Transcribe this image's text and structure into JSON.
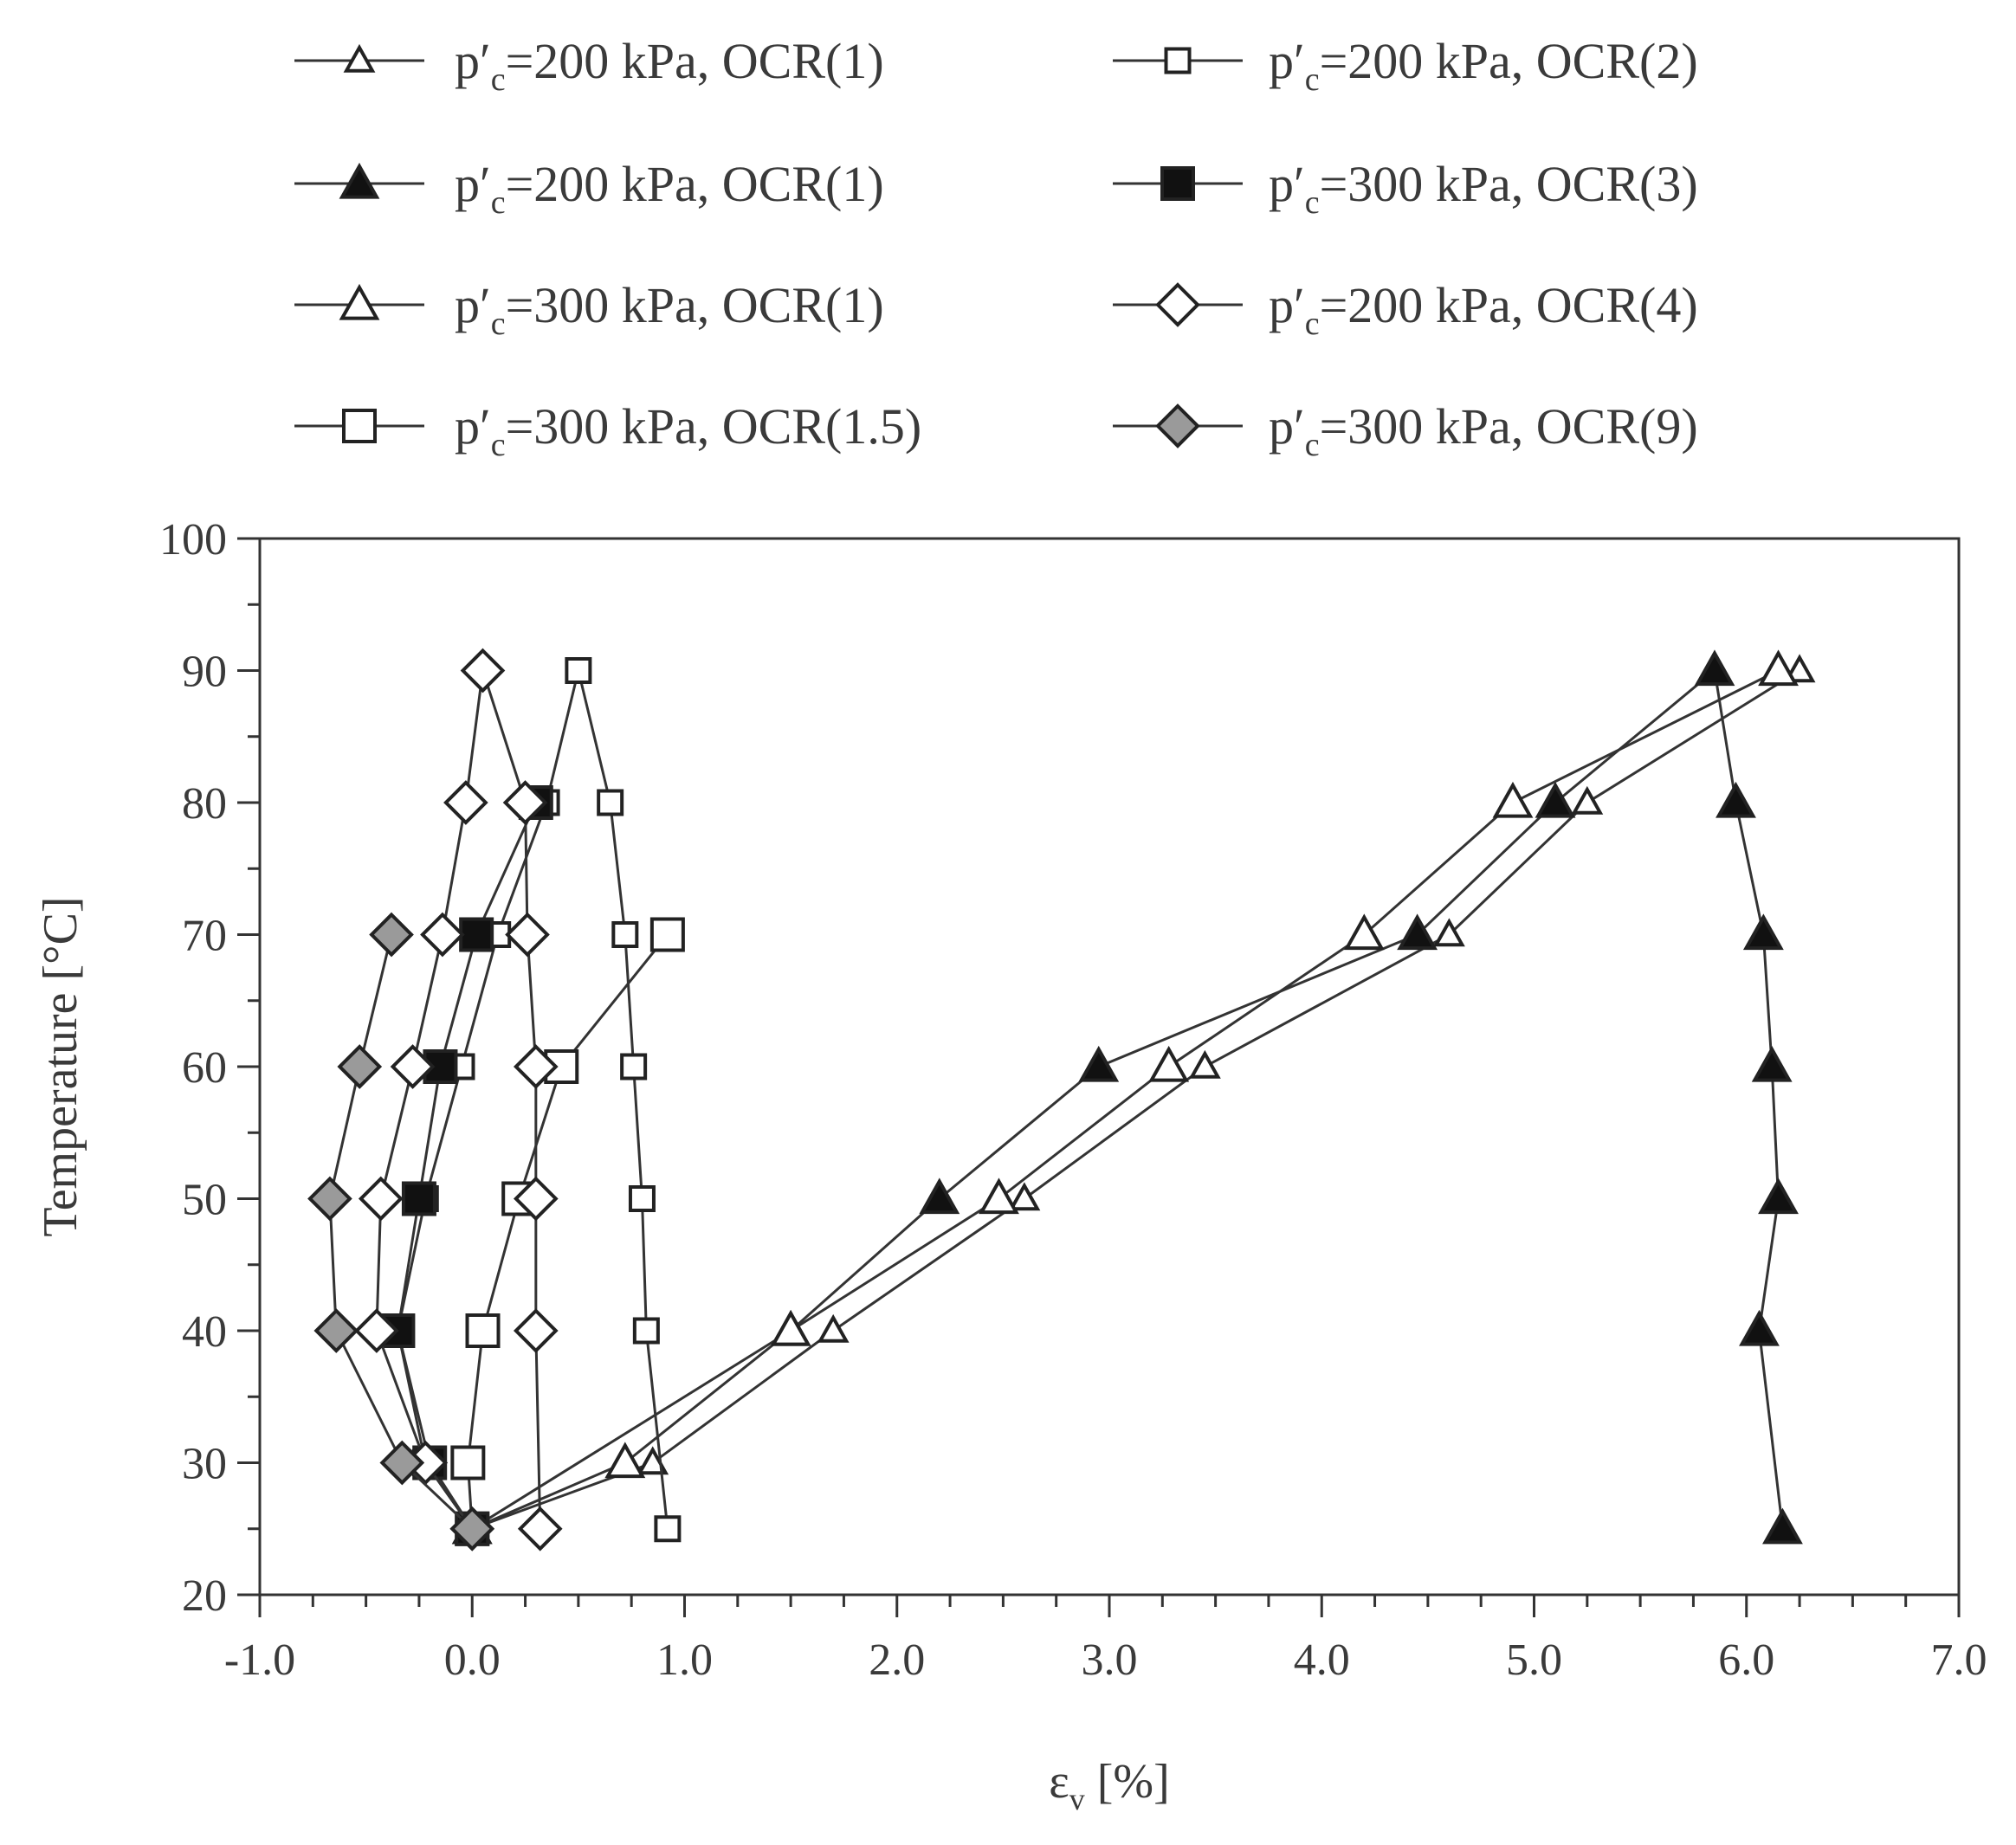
{
  "chart_data": {
    "type": "line",
    "xlabel": "ε",
    "xlabel_sub": "v",
    "xlabel_unit": " [%]",
    "ylabel": "Temperature [°C]",
    "xlim": [
      -1.0,
      7.0
    ],
    "ylim": [
      20,
      100
    ],
    "grid": false,
    "legend_position": "top",
    "x_ticks": [
      -1.0,
      0.0,
      1.0,
      2.0,
      3.0,
      4.0,
      5.0,
      6.0,
      7.0
    ],
    "x_tick_labels": [
      "-1.0",
      "0.0",
      "1.0",
      "2.0",
      "3.0",
      "4.0",
      "5.0",
      "6.0",
      "7.0"
    ],
    "y_ticks": [
      20,
      30,
      40,
      50,
      60,
      70,
      80,
      90,
      100
    ],
    "y_tick_labels": [
      "20",
      "30",
      "40",
      "50",
      "60",
      "70",
      "80",
      "90",
      "100"
    ],
    "series": [
      {
        "name": "p′c=200 kPa, OCR(1)",
        "name_parts": [
          "p′",
          "c",
          "=200 kPa, OCR(1)"
        ],
        "marker": "triangle-open-small",
        "x": [
          0.0,
          0.85,
          1.7,
          2.6,
          3.45,
          4.6,
          5.25,
          6.25
        ],
        "y": [
          25,
          30,
          40,
          50,
          60,
          70,
          80,
          90
        ]
      },
      {
        "name": "p′c=200 kPa, OCR(1)",
        "name_parts": [
          "p′",
          "c",
          "=200 kPa, OCR(1)"
        ],
        "marker": "triangle-filled",
        "x": [
          0.0,
          1.5,
          2.2,
          2.95,
          4.45,
          5.1,
          5.85,
          5.95,
          6.08,
          6.12,
          6.15,
          6.06,
          6.17
        ],
        "y": [
          25,
          40,
          50,
          60,
          70,
          80,
          90,
          80,
          70,
          60,
          50,
          40,
          25
        ]
      },
      {
        "name": "p′c=300 kPa, OCR(1)",
        "name_parts": [
          "p′",
          "c",
          "=300 kPa, OCR(1)"
        ],
        "marker": "triangle-open",
        "x": [
          0.0,
          0.72,
          1.5,
          2.48,
          3.28,
          4.2,
          4.9,
          6.15
        ],
        "y": [
          25,
          30,
          40,
          50,
          60,
          70,
          80,
          90
        ]
      },
      {
        "name": "p′c=300 kPa, OCR(1.5)",
        "name_parts": [
          "p′",
          "c",
          "=300 kPa, OCR(1.5)"
        ],
        "marker": "square-open",
        "x": [
          0.0,
          -0.02,
          0.05,
          0.22,
          0.42,
          0.92
        ],
        "y": [
          25,
          30,
          40,
          50,
          60,
          70
        ]
      },
      {
        "name": "p′c=200 kPa, OCR(2)",
        "name_parts": [
          "p′",
          "c",
          "=200 kPa, OCR(2)"
        ],
        "marker": "square-open-small",
        "x": [
          0.92,
          0.82,
          0.8,
          0.76,
          0.72,
          0.65,
          0.5,
          0.35,
          0.12,
          -0.05,
          -0.22,
          -0.35,
          -0.22,
          0.0
        ],
        "y": [
          25,
          40,
          50,
          60,
          70,
          80,
          90,
          80,
          70,
          60,
          50,
          40,
          30,
          25
        ]
      },
      {
        "name": "p′c=300 kPa, OCR(3)",
        "name_parts": [
          "p′",
          "c",
          "=300 kPa, OCR(3)"
        ],
        "marker": "square-filled",
        "x": [
          0.0,
          -0.2,
          -0.35,
          -0.25,
          -0.15,
          0.02,
          0.3
        ],
        "y": [
          25,
          30,
          40,
          50,
          60,
          70,
          80
        ]
      },
      {
        "name": "p′c=200 kPa, OCR(4)",
        "name_parts": [
          "p′",
          "c",
          "=200 kPa, OCR(4)"
        ],
        "marker": "diamond-open",
        "x": [
          0.32,
          0.3,
          0.3,
          0.3,
          0.26,
          0.25,
          0.05,
          -0.03,
          -0.14,
          -0.28,
          -0.43,
          -0.45,
          -0.22,
          0.0
        ],
        "y": [
          25,
          40,
          50,
          60,
          70,
          80,
          90,
          80,
          70,
          60,
          50,
          40,
          30,
          25
        ]
      },
      {
        "name": "p′c=300 kPa, OCR(9)",
        "name_parts": [
          "p′",
          "c",
          "=300 kPa, OCR(9)"
        ],
        "marker": "diamond-gray",
        "x": [
          0.0,
          -0.33,
          -0.64,
          -0.67,
          -0.53,
          -0.38
        ],
        "y": [
          25,
          30,
          40,
          50,
          60,
          70
        ]
      }
    ]
  }
}
